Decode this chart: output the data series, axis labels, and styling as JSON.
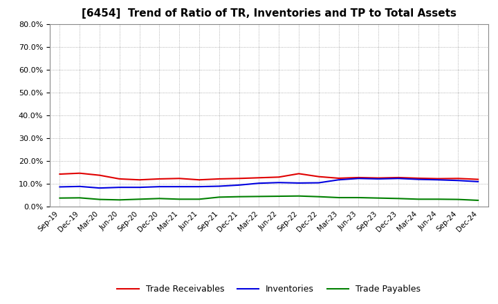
{
  "title": "[6454]  Trend of Ratio of TR, Inventories and TP to Total Assets",
  "x_labels": [
    "Sep-19",
    "Dec-19",
    "Mar-20",
    "Jun-20",
    "Sep-20",
    "Dec-20",
    "Mar-21",
    "Jun-21",
    "Sep-21",
    "Dec-21",
    "Mar-22",
    "Jun-22",
    "Sep-22",
    "Dec-22",
    "Mar-23",
    "Jun-23",
    "Sep-23",
    "Dec-23",
    "Mar-24",
    "Jun-24",
    "Sep-24",
    "Dec-24"
  ],
  "trade_receivables": [
    0.143,
    0.147,
    0.138,
    0.122,
    0.118,
    0.122,
    0.124,
    0.118,
    0.122,
    0.124,
    0.127,
    0.13,
    0.145,
    0.132,
    0.125,
    0.128,
    0.126,
    0.128,
    0.125,
    0.123,
    0.124,
    0.12
  ],
  "inventories": [
    0.087,
    0.089,
    0.082,
    0.085,
    0.085,
    0.088,
    0.088,
    0.088,
    0.09,
    0.095,
    0.103,
    0.106,
    0.104,
    0.105,
    0.118,
    0.124,
    0.122,
    0.124,
    0.12,
    0.118,
    0.115,
    0.11
  ],
  "trade_payables": [
    0.038,
    0.039,
    0.032,
    0.03,
    0.033,
    0.036,
    0.033,
    0.033,
    0.042,
    0.044,
    0.045,
    0.046,
    0.047,
    0.044,
    0.04,
    0.04,
    0.038,
    0.036,
    0.033,
    0.033,
    0.032,
    0.028
  ],
  "tr_color": "#e00000",
  "inv_color": "#0000e0",
  "tp_color": "#008000",
  "ylim": [
    0.0,
    0.8
  ],
  "yticks": [
    0.0,
    0.1,
    0.2,
    0.3,
    0.4,
    0.5,
    0.6,
    0.7,
    0.8
  ],
  "bg_color": "#ffffff",
  "plot_bg_color": "#ffffff",
  "grid_color": "#999999",
  "title_fontsize": 11,
  "legend_labels": [
    "Trade Receivables",
    "Inventories",
    "Trade Payables"
  ]
}
